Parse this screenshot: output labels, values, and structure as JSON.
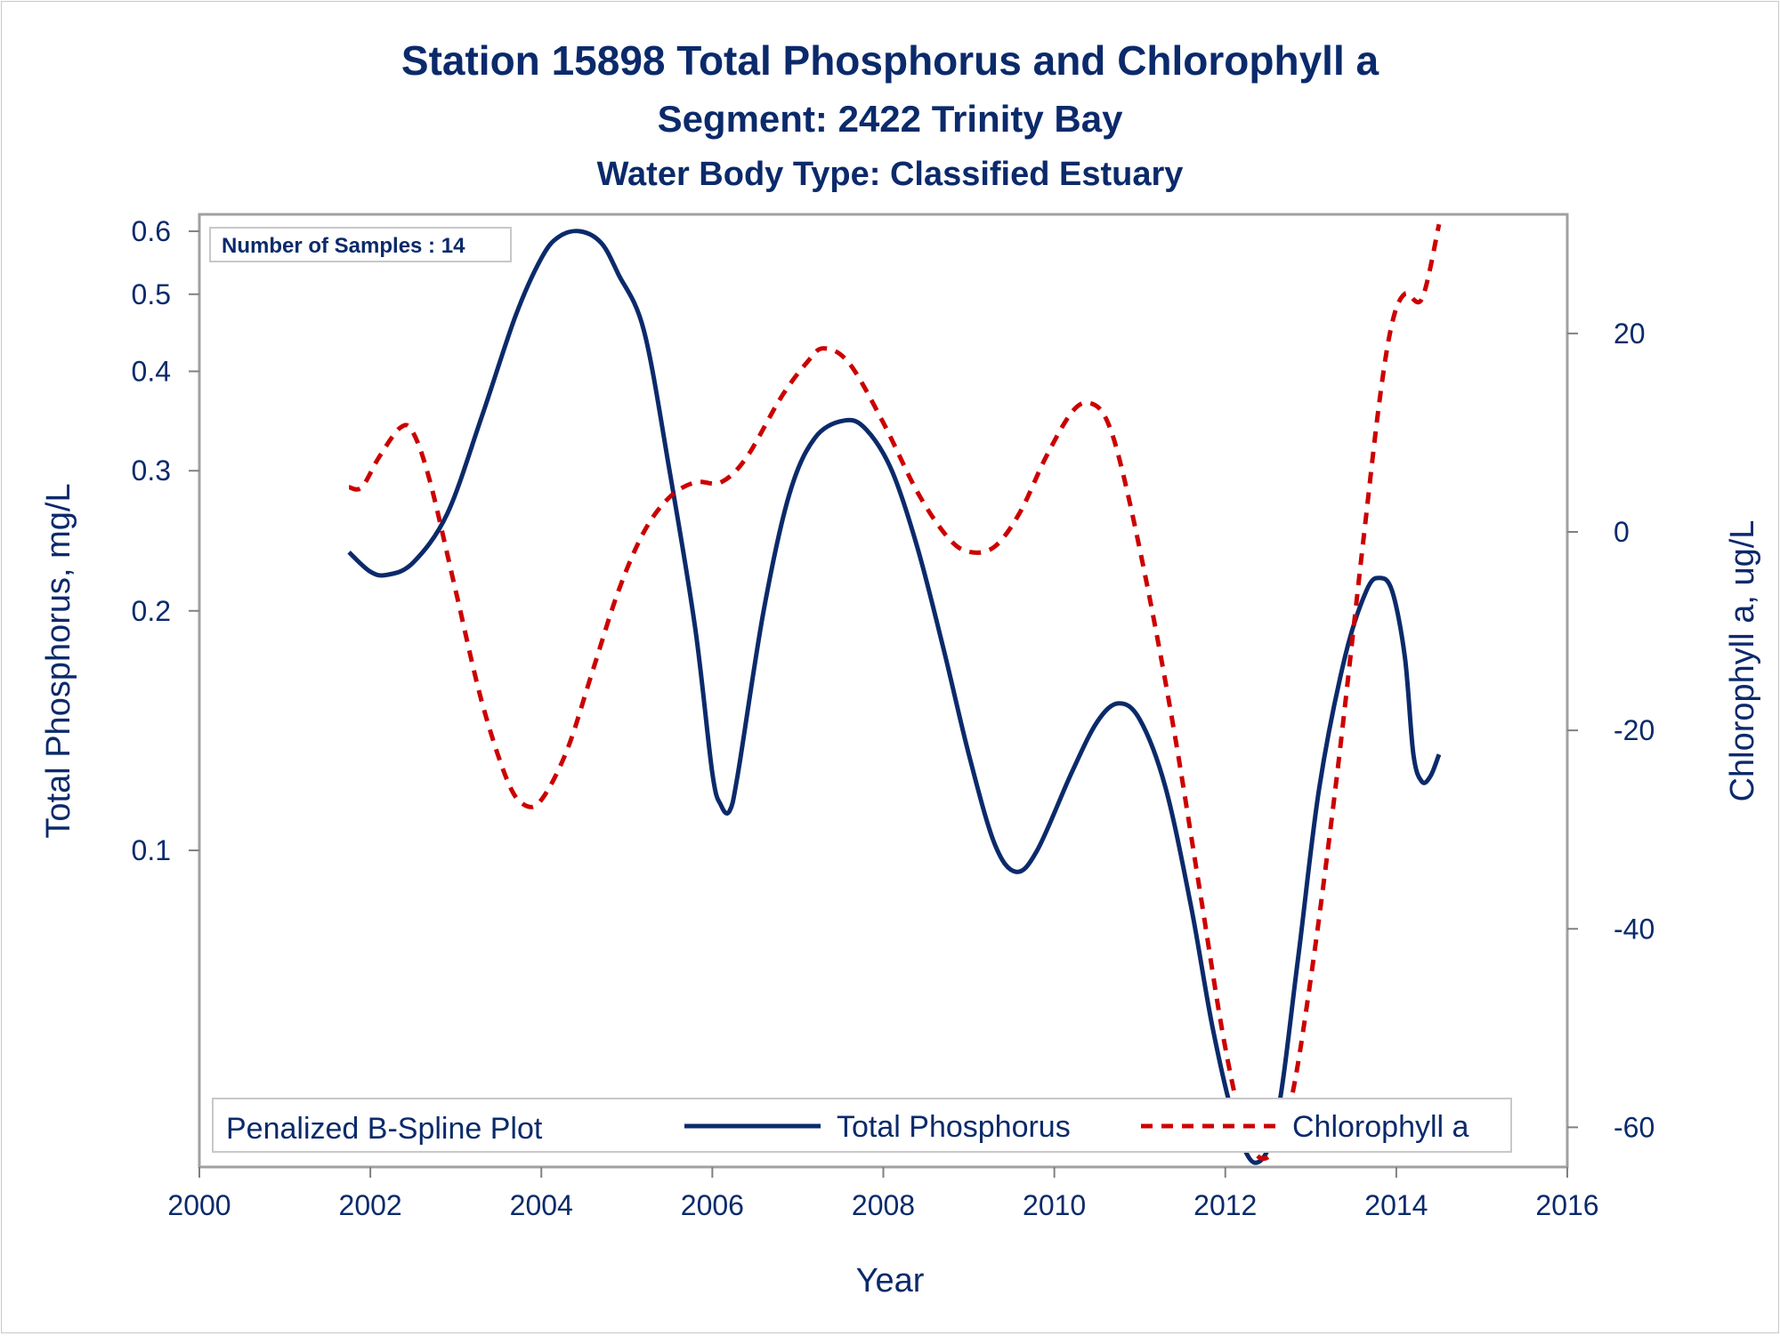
{
  "chart_data": {
    "type": "line",
    "title": "Station 15898  Total Phosphorus and Chlorophyll a",
    "subtitle": "Segment: 2422  Trinity Bay",
    "subtitle2": "Water Body Type: Classified Estuary",
    "xlabel": "Year",
    "ylabel": "Total Phosphorus, mg/L",
    "y2label": "Chlorophyll a, ug/L",
    "xlim": [
      2000,
      2016
    ],
    "ylim": [
      0.04,
      0.63
    ],
    "yscale": "log",
    "y2lim": [
      -64,
      32
    ],
    "x_ticks": [
      "2000",
      "2002",
      "2004",
      "2006",
      "2008",
      "2010",
      "2012",
      "2014",
      "2016"
    ],
    "y_ticks": [
      "0.6",
      "0.5",
      "0.4",
      "0.3",
      "0.2",
      "0.1"
    ],
    "y_tick_values": [
      0.6,
      0.5,
      0.4,
      0.3,
      0.2,
      0.1
    ],
    "y2_ticks": [
      "20",
      "0",
      "-20",
      "-40",
      "-60"
    ],
    "y2_tick_values": [
      20,
      0,
      -20,
      -40,
      -60
    ],
    "note": "Number of Samples : 14",
    "legend": {
      "title": "Penalized B-Spline Plot",
      "position": "bottom-inside"
    },
    "series": [
      {
        "name": "Total Phosphorus",
        "axis": "left",
        "color": "#0b2a6b",
        "style": "solid",
        "points": [
          [
            2001.75,
            0.237
          ],
          [
            2002.0,
            0.224
          ],
          [
            2002.2,
            0.222
          ],
          [
            2002.5,
            0.23
          ],
          [
            2002.9,
            0.265
          ],
          [
            2003.3,
            0.35
          ],
          [
            2003.7,
            0.47
          ],
          [
            2004.0,
            0.555
          ],
          [
            2004.2,
            0.59
          ],
          [
            2004.45,
            0.6
          ],
          [
            2004.7,
            0.58
          ],
          [
            2004.9,
            0.53
          ],
          [
            2005.2,
            0.45
          ],
          [
            2005.5,
            0.3
          ],
          [
            2005.8,
            0.19
          ],
          [
            2006.0,
            0.125
          ],
          [
            2006.1,
            0.114
          ],
          [
            2006.2,
            0.112
          ],
          [
            2006.3,
            0.125
          ],
          [
            2006.6,
            0.2
          ],
          [
            2006.9,
            0.28
          ],
          [
            2007.2,
            0.33
          ],
          [
            2007.55,
            0.347
          ],
          [
            2007.8,
            0.338
          ],
          [
            2008.1,
            0.3
          ],
          [
            2008.4,
            0.24
          ],
          [
            2008.7,
            0.18
          ],
          [
            2009.0,
            0.132
          ],
          [
            2009.3,
            0.102
          ],
          [
            2009.55,
            0.094
          ],
          [
            2009.8,
            0.1
          ],
          [
            2010.2,
            0.125
          ],
          [
            2010.5,
            0.145
          ],
          [
            2010.75,
            0.153
          ],
          [
            2011.0,
            0.146
          ],
          [
            2011.3,
            0.12
          ],
          [
            2011.6,
            0.085
          ],
          [
            2011.85,
            0.06
          ],
          [
            2012.1,
            0.046
          ],
          [
            2012.35,
            0.0405
          ],
          [
            2012.6,
            0.046
          ],
          [
            2012.85,
            0.073
          ],
          [
            2013.1,
            0.12
          ],
          [
            2013.4,
            0.175
          ],
          [
            2013.65,
            0.212
          ],
          [
            2013.8,
            0.22
          ],
          [
            2013.95,
            0.212
          ],
          [
            2014.1,
            0.175
          ],
          [
            2014.2,
            0.132
          ],
          [
            2014.3,
            0.122
          ],
          [
            2014.4,
            0.124
          ],
          [
            2014.5,
            0.132
          ]
        ]
      },
      {
        "name": "Chlorophyll a",
        "axis": "right",
        "color": "#cc0000",
        "style": "dashed",
        "points": [
          [
            2001.75,
            4.5
          ],
          [
            2001.9,
            4.5
          ],
          [
            2002.1,
            7.5
          ],
          [
            2002.35,
            10.5
          ],
          [
            2002.5,
            10.0
          ],
          [
            2002.7,
            5.0
          ],
          [
            2003.0,
            -6.0
          ],
          [
            2003.3,
            -17.0
          ],
          [
            2003.6,
            -25.0
          ],
          [
            2003.8,
            -27.5
          ],
          [
            2004.0,
            -27.0
          ],
          [
            2004.3,
            -22.0
          ],
          [
            2004.6,
            -14.0
          ],
          [
            2004.9,
            -6.0
          ],
          [
            2005.2,
            0.0
          ],
          [
            2005.5,
            3.5
          ],
          [
            2005.8,
            5.0
          ],
          [
            2006.1,
            5.0
          ],
          [
            2006.4,
            7.5
          ],
          [
            2006.8,
            13.5
          ],
          [
            2007.1,
            17.0
          ],
          [
            2007.3,
            18.5
          ],
          [
            2007.6,
            17.0
          ],
          [
            2008.0,
            11.0
          ],
          [
            2008.4,
            4.0
          ],
          [
            2008.75,
            -0.5
          ],
          [
            2009.0,
            -2.0
          ],
          [
            2009.3,
            -1.5
          ],
          [
            2009.6,
            2.0
          ],
          [
            2009.9,
            7.5
          ],
          [
            2010.2,
            12.0
          ],
          [
            2010.4,
            13.0
          ],
          [
            2010.6,
            11.5
          ],
          [
            2010.8,
            6.0
          ],
          [
            2011.1,
            -6.0
          ],
          [
            2011.4,
            -20.0
          ],
          [
            2011.7,
            -36.0
          ],
          [
            2012.0,
            -52.0
          ],
          [
            2012.25,
            -61.0
          ],
          [
            2012.5,
            -63.0
          ],
          [
            2012.75,
            -58.0
          ],
          [
            2013.0,
            -45.0
          ],
          [
            2013.3,
            -25.0
          ],
          [
            2013.6,
            -2.0
          ],
          [
            2013.8,
            13.0
          ],
          [
            2013.95,
            21.0
          ],
          [
            2014.1,
            24.0
          ],
          [
            2014.3,
            23.5
          ],
          [
            2014.5,
            31.0
          ]
        ]
      }
    ]
  }
}
